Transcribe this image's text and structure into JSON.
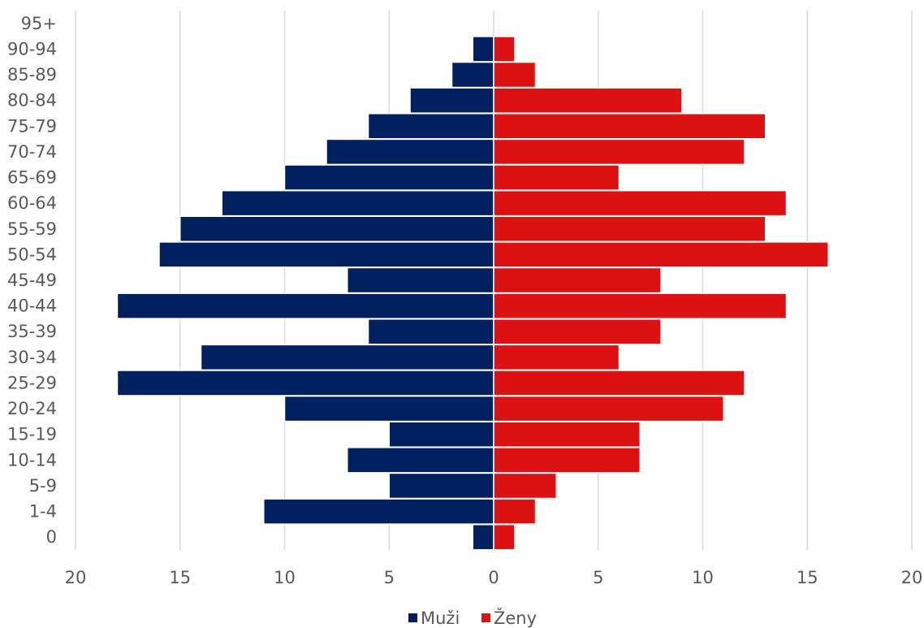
{
  "chart_data": {
    "type": "bar",
    "orientation": "horizontal",
    "layout": "population-pyramid",
    "categories": [
      "0",
      "1-4",
      "5-9",
      "10-14",
      "15-19",
      "20-24",
      "25-29",
      "30-34",
      "35-39",
      "40-44",
      "45-49",
      "50-54",
      "55-59",
      "60-64",
      "65-69",
      "70-74",
      "75-79",
      "80-84",
      "85-89",
      "90-94",
      "95+"
    ],
    "series": [
      {
        "name": "Muži",
        "color": "#002060",
        "values": [
          1,
          11,
          5,
          7,
          5,
          10,
          18,
          14,
          6,
          18,
          7,
          16,
          15,
          13,
          10,
          8,
          6,
          4,
          2,
          1,
          0
        ]
      },
      {
        "name": "Ženy",
        "color": "#dd1111",
        "values": [
          1,
          2,
          3,
          7,
          7,
          11,
          12,
          6,
          8,
          14,
          8,
          16,
          13,
          14,
          6,
          12,
          13,
          9,
          2,
          1,
          0
        ]
      }
    ],
    "xlim": [
      -20,
      20
    ],
    "x_ticks": [
      -20,
      -15,
      -10,
      -5,
      0,
      5,
      10,
      15,
      20
    ],
    "x_tick_labels": [
      "20",
      "15",
      "10",
      "5",
      "0",
      "5",
      "10",
      "15",
      "20"
    ],
    "grid": "vertical",
    "legend_position": "bottom"
  }
}
